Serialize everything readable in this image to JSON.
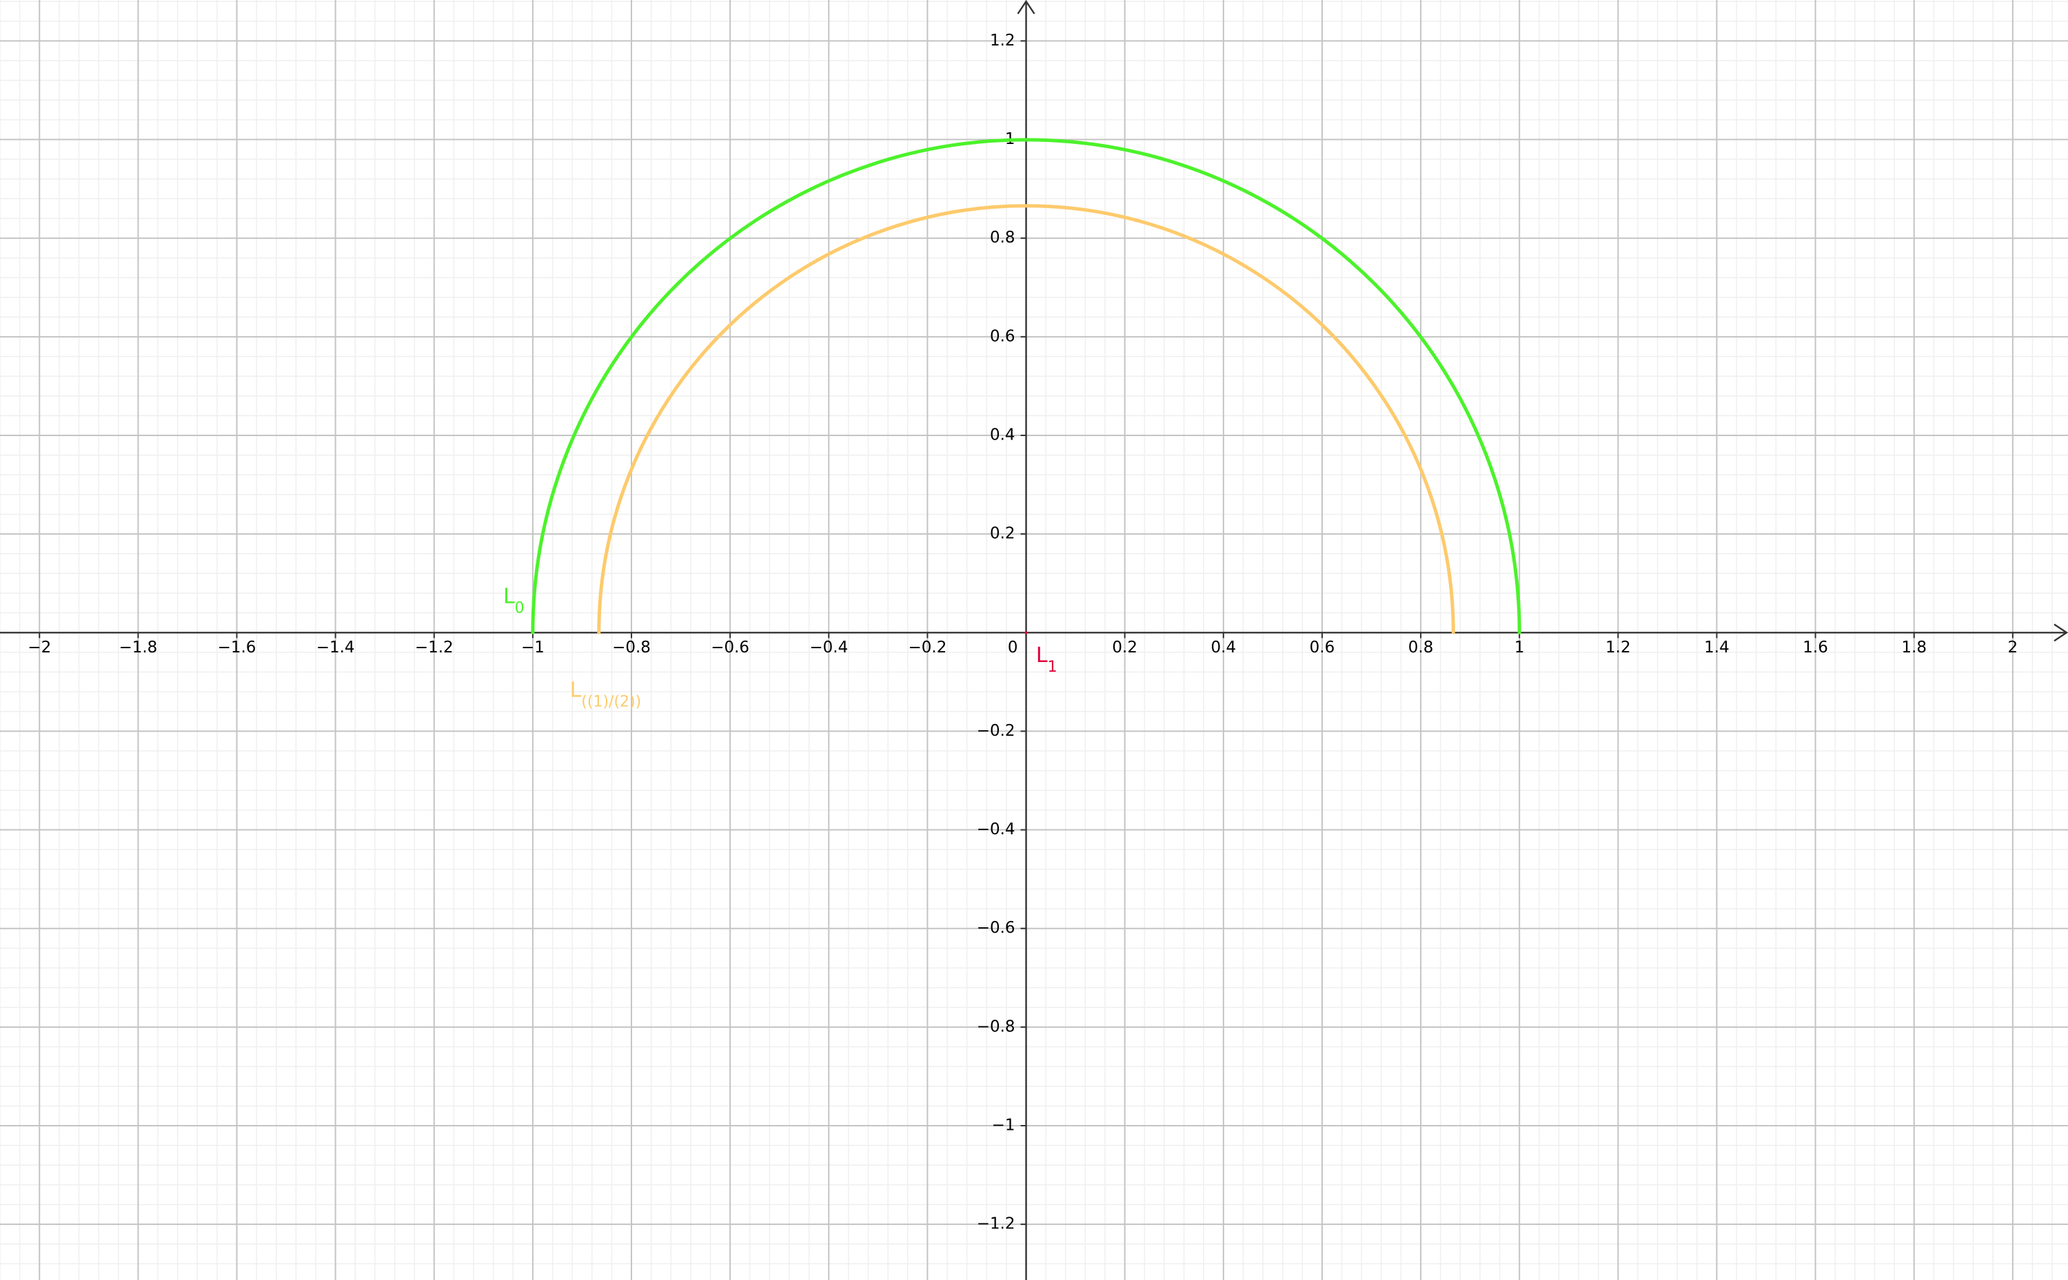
{
  "chart_data": {
    "type": "curve",
    "xlim": [
      -2.08,
      2.112
    ],
    "ylim": [
      -1.313,
      1.283
    ],
    "grid": true,
    "minor_grid_step": 0.04,
    "xticks": [
      {
        "value": -2,
        "label": "−2"
      },
      {
        "value": -1.8,
        "label": "−1.8"
      },
      {
        "value": -1.6,
        "label": "−1.6"
      },
      {
        "value": -1.4,
        "label": "−1.4"
      },
      {
        "value": -1.2,
        "label": "−1.2"
      },
      {
        "value": -1,
        "label": "−1"
      },
      {
        "value": -0.8,
        "label": "−0.8"
      },
      {
        "value": -0.6,
        "label": "−0.6"
      },
      {
        "value": -0.4,
        "label": "−0.4"
      },
      {
        "value": -0.2,
        "label": "−0.2"
      },
      0,
      0.2,
      0.4,
      0.6,
      0.8,
      1,
      1.2,
      1.4,
      1.6,
      1.8,
      2
    ],
    "yticks": [
      {
        "value": -1.2,
        "label": "−1.2"
      },
      {
        "value": -1,
        "label": "−1"
      },
      {
        "value": -0.8,
        "label": "−0.8"
      },
      {
        "value": -0.6,
        "label": "−0.6"
      },
      {
        "value": -0.4,
        "label": "−0.4"
      },
      {
        "value": -0.2,
        "label": "−0.2"
      },
      0.2,
      0.4,
      0.6,
      0.8,
      1,
      1.2
    ],
    "series": [
      {
        "name": "L",
        "subscript": "0",
        "color": "#4cf22b",
        "radius": 1
      },
      {
        "name": "L",
        "subscript": "((1)/(2))",
        "color": "#fdca6c",
        "radius": 0.866
      },
      {
        "name": "L",
        "subscript": "1",
        "color": "#e0003a",
        "radius": 0
      }
    ]
  }
}
